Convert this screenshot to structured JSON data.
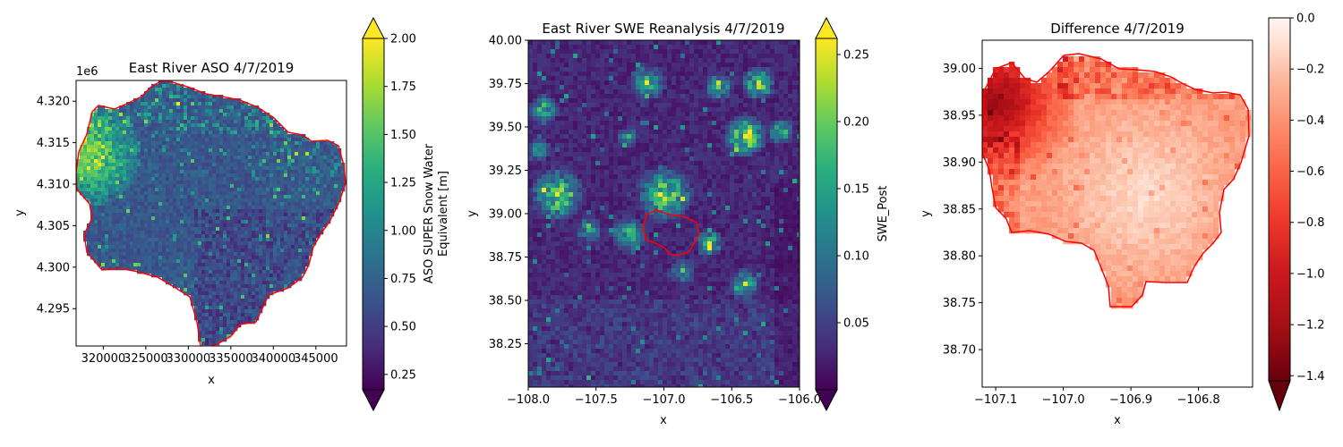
{
  "chart_data": [
    {
      "type": "heatmap",
      "title": "East River ASO 4/7/2019",
      "xlabel": "x",
      "ylabel": "y",
      "y_offset_label": "1e6",
      "xlim": [
        316800,
        348600
      ],
      "ylim": [
        4.2905,
        4.3225
      ],
      "x_ticks": [
        320000,
        325000,
        330000,
        335000,
        340000,
        345000
      ],
      "x_tick_labels": [
        "320000",
        "325000",
        "330000",
        "335000",
        "340000",
        "345000"
      ],
      "y_ticks": [
        4.295,
        4.3,
        4.305,
        4.31,
        4.315,
        4.32
      ],
      "y_tick_labels": [
        "4.295",
        "4.300",
        "4.305",
        "4.310",
        "4.315",
        "4.320"
      ],
      "colormap": "viridis",
      "colorbar": {
        "label_lines": [
          "ASO SUPER Snow Water",
          "Equivalent [m]"
        ],
        "range": [
          0.17,
          2.0
        ],
        "extend": "both",
        "ticks": [
          0.25,
          0.5,
          0.75,
          1.0,
          1.25,
          1.5,
          1.75,
          2.0
        ],
        "tick_labels": [
          "0.25",
          "0.50",
          "0.75",
          "1.00",
          "1.25",
          "1.50",
          "1.75",
          "2.00"
        ]
      },
      "outline_color": "#ff0000"
    },
    {
      "type": "heatmap",
      "title": "East River SWE Reanalysis 4/7/2019",
      "xlabel": "x",
      "ylabel": "y",
      "xlim": [
        -108.0,
        -106.0
      ],
      "ylim": [
        38.0,
        40.0
      ],
      "x_ticks": [
        -108.0,
        -107.5,
        -107.0,
        -106.5,
        -106.0
      ],
      "x_tick_labels": [
        "−108.0",
        "−107.5",
        "−107.0",
        "−106.5",
        "−106.0"
      ],
      "y_ticks": [
        38.25,
        38.5,
        38.75,
        39.0,
        39.25,
        39.5,
        39.75,
        40.0
      ],
      "y_tick_labels": [
        "38.25",
        "38.50",
        "38.75",
        "39.00",
        "39.25",
        "39.50",
        "39.75",
        "40.00"
      ],
      "colormap": "viridis",
      "colorbar": {
        "label_lines": [
          "SWE_Post"
        ],
        "range": [
          0.0,
          0.262
        ],
        "extend": "both",
        "ticks": [
          0.05,
          0.1,
          0.15,
          0.2,
          0.25
        ],
        "tick_labels": [
          "0.05",
          "0.10",
          "0.15",
          "0.20",
          "0.25"
        ]
      },
      "outline_color": "#ff0000"
    },
    {
      "type": "heatmap",
      "title": "Difference 4/7/2019",
      "xlabel": "x",
      "ylabel": "y",
      "xlim": [
        -107.12,
        -106.72
      ],
      "ylim": [
        38.66,
        39.03
      ],
      "x_ticks": [
        -107.1,
        -107.0,
        -106.9,
        -106.8
      ],
      "x_tick_labels": [
        "−107.1",
        "−107.0",
        "−106.9",
        "−106.8"
      ],
      "y_ticks": [
        38.7,
        38.75,
        38.8,
        38.85,
        38.9,
        38.95,
        39.0
      ],
      "y_tick_labels": [
        "38.70",
        "38.75",
        "38.80",
        "38.85",
        "38.90",
        "38.95",
        "39.00"
      ],
      "colormap": "Reds_r",
      "colorbar": {
        "label_lines": [],
        "range": [
          -1.42,
          0.0
        ],
        "extend": "min",
        "ticks": [
          0.0,
          -0.2,
          -0.4,
          -0.6,
          -0.8,
          -1.0,
          -1.2,
          -1.4
        ],
        "tick_labels": [
          "0.0",
          "−0.2",
          "−0.4",
          "−0.6",
          "−0.8",
          "−1.0",
          "−1.2",
          "−1.4"
        ]
      },
      "outline_color": "#ff0000"
    }
  ]
}
